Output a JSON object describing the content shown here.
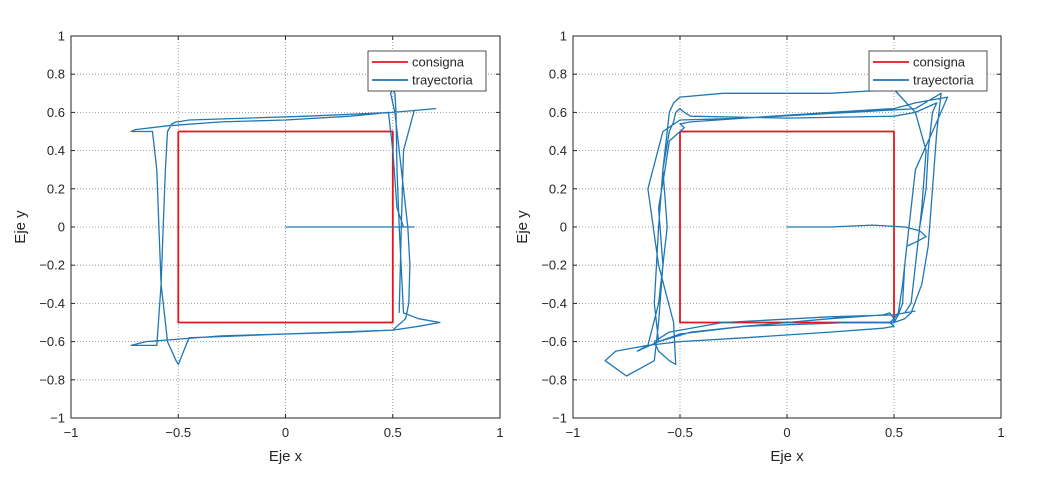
{
  "chart_data": [
    {
      "type": "line",
      "xlabel": "Eje x",
      "ylabel": "Eje y",
      "xlim": [
        -1,
        1
      ],
      "ylim": [
        -1,
        1
      ],
      "xticks": [
        -1,
        -0.5,
        0,
        0.5,
        1
      ],
      "xtick_labels": [
        "−1",
        "−0.5",
        "0",
        "0.5",
        "1"
      ],
      "yticks": [
        -1,
        -0.8,
        -0.6,
        -0.4,
        -0.2,
        0,
        0.2,
        0.4,
        0.6,
        0.8,
        1
      ],
      "ytick_labels": [
        "−1",
        "−0.8",
        "−0.6",
        "−0.4",
        "−0.2",
        "0",
        "0.2",
        "0.4",
        "0.6",
        "0.8",
        "1"
      ],
      "grid": true,
      "legend_position": "top-right",
      "series": [
        {
          "name": "consigna",
          "color": "#e8141c",
          "x": [
            -0.5,
            0.5,
            0.5,
            -0.5,
            -0.5
          ],
          "y": [
            0.5,
            0.5,
            -0.5,
            -0.5,
            0.5
          ]
        },
        {
          "name": "trayectoria",
          "color": "#1f77b4",
          "x": [
            0,
            0.6,
            0.55,
            0.52,
            0.5,
            0.48,
            0.3,
            0,
            -0.3,
            -0.55,
            -0.7,
            -0.72,
            -0.62,
            -0.6,
            -0.59,
            -0.58,
            -0.56,
            -0.55,
            -0.53,
            -0.51,
            -0.5,
            -0.45,
            0.0,
            0.5,
            0.62,
            0.72,
            0.62,
            0.55,
            0.53,
            0.52,
            0.515,
            0.51,
            0.5,
            0.49,
            0.51,
            0.53,
            0.55,
            0.57,
            0.58,
            0.575,
            0.56,
            0.54,
            0.52,
            0.5,
            0.3,
            -0.3,
            -0.65,
            -0.72,
            -0.6,
            -0.58,
            -0.57,
            -0.56,
            -0.55,
            -0.53,
            -0.51,
            -0.5,
            -0.45,
            0.1,
            0.5,
            0.6,
            0.7,
            0.6,
            0.55,
            0.54,
            0.53
          ],
          "y": [
            0,
            0,
            0,
            0.1,
            0.4,
            0.6,
            0.58,
            0.56,
            0.55,
            0.53,
            0.51,
            0.5,
            0.5,
            0.3,
            0.0,
            -0.3,
            -0.5,
            -0.6,
            -0.65,
            -0.7,
            -0.72,
            -0.58,
            -0.56,
            -0.54,
            -0.52,
            -0.5,
            -0.48,
            -0.45,
            0.0,
            0.3,
            0.6,
            0.7,
            0.72,
            0.7,
            0.6,
            0.4,
            0.2,
            0.0,
            -0.2,
            -0.4,
            -0.48,
            -0.5,
            -0.52,
            -0.54,
            -0.55,
            -0.57,
            -0.6,
            -0.62,
            -0.62,
            -0.3,
            0.0,
            0.3,
            0.5,
            0.54,
            0.55,
            0.55,
            0.56,
            0.58,
            0.6,
            0.61,
            0.62,
            0.61,
            0.4,
            0.0,
            -0.45
          ]
        }
      ]
    },
    {
      "type": "line",
      "xlabel": "Eje x",
      "ylabel": "Eje y",
      "xlim": [
        -1,
        1
      ],
      "ylim": [
        -1,
        1
      ],
      "xticks": [
        -1,
        -0.5,
        0,
        0.5,
        1
      ],
      "xtick_labels": [
        "−1",
        "−0.5",
        "0",
        "0.5",
        "1"
      ],
      "yticks": [
        -1,
        -0.8,
        -0.6,
        -0.4,
        -0.2,
        0,
        0.2,
        0.4,
        0.6,
        0.8,
        1
      ],
      "ytick_labels": [
        "−1",
        "−0.8",
        "−0.6",
        "−0.4",
        "−0.2",
        "0",
        "0.2",
        "0.4",
        "0.6",
        "0.8",
        "1"
      ],
      "grid": true,
      "legend_position": "top-right",
      "series": [
        {
          "name": "consigna",
          "color": "#e8141c",
          "x": [
            -0.5,
            0.5,
            0.5,
            -0.5,
            -0.5
          ],
          "y": [
            0.5,
            0.5,
            -0.5,
            -0.5,
            0.5
          ]
        },
        {
          "name": "trayectoria",
          "color": "#1f77b4",
          "x": [
            0,
            0.2,
            0.4,
            0.55,
            0.62,
            0.65,
            0.6,
            0.56,
            0.54,
            0.52,
            0.5,
            0.48,
            0.5,
            0.45,
            0.2,
            -0.2,
            -0.5,
            -0.65,
            -0.8,
            -0.85,
            -0.75,
            -0.62,
            -0.6,
            -0.58,
            -0.6,
            -0.57,
            -0.55,
            -0.5,
            -0.48,
            -0.5,
            -0.45,
            -0.2,
            0.2,
            0.5,
            0.6,
            0.75,
            0.7,
            0.6,
            0.57,
            0.55,
            0.54,
            0.52,
            0.5,
            0.5,
            0.48,
            0.45,
            0.2,
            -0.2,
            -0.45,
            -0.6,
            -0.7,
            -0.65,
            -0.6,
            -0.56,
            -0.58,
            -0.55,
            -0.53,
            -0.52,
            -0.5,
            -0.48,
            -0.45,
            0.0,
            0.5,
            0.6,
            0.7,
            0.68,
            0.66,
            0.65,
            0.62,
            0.6,
            0.58,
            0.55,
            0.5,
            0.2,
            -0.3,
            -0.55,
            -0.62,
            -0.6,
            -0.55,
            -0.52,
            -0.53,
            -0.6,
            -0.65,
            -0.58,
            -0.5,
            -0.2,
            0.3,
            0.6,
            0.72,
            0.7,
            0.68,
            0.66,
            0.63,
            0.58,
            0.55,
            0.5,
            0.3,
            -0.2,
            -0.5,
            -0.6,
            -0.62,
            -0.6,
            -0.58,
            -0.56,
            -0.55,
            -0.53,
            -0.5,
            -0.3,
            0.2,
            0.5,
            0.6,
            0.65,
            0.63,
            0.6,
            0.58,
            0.55,
            0.6
          ],
          "y": [
            0,
            0,
            0.01,
            0.0,
            -0.02,
            -0.05,
            -0.08,
            -0.1,
            -0.3,
            -0.45,
            -0.48,
            -0.5,
            -0.52,
            -0.53,
            -0.55,
            -0.58,
            -0.6,
            -0.62,
            -0.65,
            -0.7,
            -0.78,
            -0.7,
            -0.5,
            -0.2,
            0.1,
            0.3,
            0.45,
            0.5,
            0.52,
            0.54,
            0.55,
            0.57,
            0.6,
            0.62,
            0.65,
            0.68,
            0.55,
            0.3,
            0.0,
            -0.2,
            -0.4,
            -0.46,
            -0.5,
            -0.48,
            -0.45,
            -0.46,
            -0.48,
            -0.52,
            -0.55,
            -0.6,
            -0.65,
            -0.62,
            -0.4,
            0.0,
            0.3,
            0.5,
            0.55,
            0.6,
            0.62,
            0.6,
            0.58,
            0.57,
            0.58,
            0.6,
            0.65,
            0.6,
            0.4,
            0.2,
            0.0,
            -0.2,
            -0.4,
            -0.45,
            -0.46,
            -0.47,
            -0.5,
            -0.55,
            -0.6,
            -0.65,
            -0.7,
            -0.72,
            -0.5,
            -0.2,
            0.2,
            0.5,
            0.56,
            0.57,
            0.6,
            0.62,
            0.7,
            0.5,
            0.2,
            -0.1,
            -0.3,
            -0.45,
            -0.48,
            -0.5,
            -0.5,
            -0.52,
            -0.56,
            -0.6,
            -0.4,
            0.0,
            0.3,
            0.5,
            0.6,
            0.65,
            0.68,
            0.7,
            0.7,
            0.72,
            0.6,
            0.4,
            0.1,
            -0.2,
            -0.4,
            -0.45,
            -0.44
          ]
        }
      ]
    }
  ]
}
